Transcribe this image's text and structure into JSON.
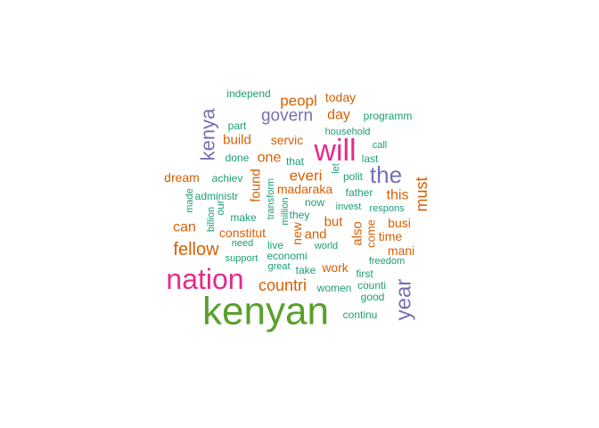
{
  "word_cloud": {
    "palette": {
      "green": "#5aa02c",
      "pink": "#e7298a",
      "purple": "#7570b3",
      "orange": "#d95f02",
      "teal": "#1b9e77"
    },
    "words": [
      {
        "text": "kenyan",
        "color": "green",
        "vertical": false
      },
      {
        "text": "nation",
        "color": "pink",
        "vertical": false
      },
      {
        "text": "will",
        "color": "pink",
        "vertical": false
      },
      {
        "text": "the",
        "color": "purple",
        "vertical": false
      },
      {
        "text": "year",
        "color": "purple",
        "vertical": true
      },
      {
        "text": "kenya",
        "color": "purple",
        "vertical": true
      },
      {
        "text": "govern",
        "color": "purple",
        "vertical": false
      },
      {
        "text": "fellow",
        "color": "orange",
        "vertical": false
      },
      {
        "text": "countri",
        "color": "orange",
        "vertical": false
      },
      {
        "text": "must",
        "color": "orange",
        "vertical": true
      },
      {
        "text": "peopl",
        "color": "orange",
        "vertical": false
      },
      {
        "text": "everi",
        "color": "orange",
        "vertical": false
      },
      {
        "text": "day",
        "color": "orange",
        "vertical": false
      },
      {
        "text": "one",
        "color": "orange",
        "vertical": false
      },
      {
        "text": "this",
        "color": "orange",
        "vertical": false
      },
      {
        "text": "can",
        "color": "orange",
        "vertical": false
      },
      {
        "text": "and",
        "color": "orange",
        "vertical": false
      },
      {
        "text": "also",
        "color": "orange",
        "vertical": true
      },
      {
        "text": "but",
        "color": "orange",
        "vertical": false
      },
      {
        "text": "build",
        "color": "orange",
        "vertical": false
      },
      {
        "text": "found",
        "color": "orange",
        "vertical": true
      },
      {
        "text": "madaraka",
        "color": "orange",
        "vertical": false
      },
      {
        "text": "new",
        "color": "orange",
        "vertical": true
      },
      {
        "text": "work",
        "color": "orange",
        "vertical": false
      },
      {
        "text": "today",
        "color": "orange",
        "vertical": false
      },
      {
        "text": "servic",
        "color": "orange",
        "vertical": false
      },
      {
        "text": "dream",
        "color": "orange",
        "vertical": false
      },
      {
        "text": "busi",
        "color": "orange",
        "vertical": false
      },
      {
        "text": "time",
        "color": "orange",
        "vertical": false
      },
      {
        "text": "mani",
        "color": "orange",
        "vertical": false
      },
      {
        "text": "constitut",
        "color": "orange",
        "vertical": false
      },
      {
        "text": "come",
        "color": "orange",
        "vertical": true
      },
      {
        "text": "independ",
        "color": "teal",
        "vertical": false
      },
      {
        "text": "part",
        "color": "teal",
        "vertical": false
      },
      {
        "text": "programm",
        "color": "teal",
        "vertical": false
      },
      {
        "text": "household",
        "color": "teal",
        "vertical": false
      },
      {
        "text": "call",
        "color": "teal",
        "vertical": false
      },
      {
        "text": "done",
        "color": "teal",
        "vertical": false
      },
      {
        "text": "that",
        "color": "teal",
        "vertical": false
      },
      {
        "text": "polit",
        "color": "teal",
        "vertical": false
      },
      {
        "text": "last",
        "color": "teal",
        "vertical": false
      },
      {
        "text": "let",
        "color": "teal",
        "vertical": true
      },
      {
        "text": "achiev",
        "color": "teal",
        "vertical": false
      },
      {
        "text": "transform",
        "color": "teal",
        "vertical": true
      },
      {
        "text": "made",
        "color": "teal",
        "vertical": true
      },
      {
        "text": "administr",
        "color": "teal",
        "vertical": false
      },
      {
        "text": "our",
        "color": "teal",
        "vertical": true
      },
      {
        "text": "billion",
        "color": "teal",
        "vertical": true
      },
      {
        "text": "million",
        "color": "teal",
        "vertical": true
      },
      {
        "text": "father",
        "color": "teal",
        "vertical": false
      },
      {
        "text": "now",
        "color": "teal",
        "vertical": false
      },
      {
        "text": "invest",
        "color": "teal",
        "vertical": false
      },
      {
        "text": "respons",
        "color": "teal",
        "vertical": false
      },
      {
        "text": "they",
        "color": "teal",
        "vertical": false
      },
      {
        "text": "make",
        "color": "teal",
        "vertical": false
      },
      {
        "text": "live",
        "color": "teal",
        "vertical": false
      },
      {
        "text": "need",
        "color": "teal",
        "vertical": false
      },
      {
        "text": "world",
        "color": "teal",
        "vertical": false
      },
      {
        "text": "support",
        "color": "teal",
        "vertical": false
      },
      {
        "text": "economi",
        "color": "teal",
        "vertical": false
      },
      {
        "text": "great",
        "color": "teal",
        "vertical": false
      },
      {
        "text": "take",
        "color": "teal",
        "vertical": false
      },
      {
        "text": "freedom",
        "color": "teal",
        "vertical": false
      },
      {
        "text": "first",
        "color": "teal",
        "vertical": false
      },
      {
        "text": "women",
        "color": "teal",
        "vertical": false
      },
      {
        "text": "counti",
        "color": "teal",
        "vertical": false
      },
      {
        "text": "good",
        "color": "teal",
        "vertical": false
      },
      {
        "text": "continu",
        "color": "teal",
        "vertical": false
      }
    ]
  }
}
